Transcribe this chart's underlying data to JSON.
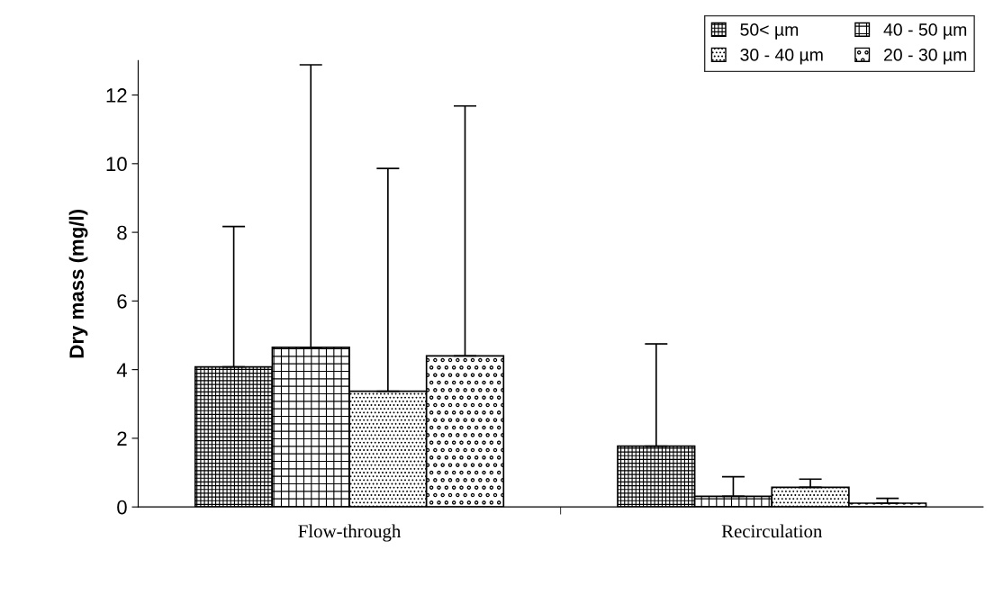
{
  "chart_data": {
    "type": "bar",
    "ylabel": "Dry mass (mg/l)",
    "categories": [
      "Flow-through",
      "Recirculation"
    ],
    "series": [
      {
        "name": "50< µm",
        "color": "#000000",
        "values": [
          4.08,
          1.77
        ],
        "errors": [
          [
            4.08,
            8.17
          ],
          [
            1.77,
            4.75
          ]
        ]
      },
      {
        "name": "40 - 50 µm",
        "color": "#000000",
        "values": [
          4.65,
          0.31
        ],
        "errors": [
          [
            4.65,
            12.88
          ],
          [
            0.31,
            0.88
          ]
        ]
      },
      {
        "name": "30 - 40 µm",
        "color": "#000000",
        "values": [
          3.37,
          0.57
        ],
        "errors": [
          [
            3.37,
            9.86
          ],
          [
            0.57,
            0.81
          ]
        ]
      },
      {
        "name": "20 - 30 µm",
        "color": "#000000",
        "values": [
          4.4,
          0.11
        ],
        "errors": [
          [
            4.4,
            11.68
          ],
          [
            0.11,
            0.25
          ]
        ]
      }
    ],
    "ylim": [
      0,
      13
    ],
    "yticks": [
      0,
      2,
      4,
      6,
      8,
      10,
      12
    ],
    "grid": false,
    "legend": "top right"
  }
}
